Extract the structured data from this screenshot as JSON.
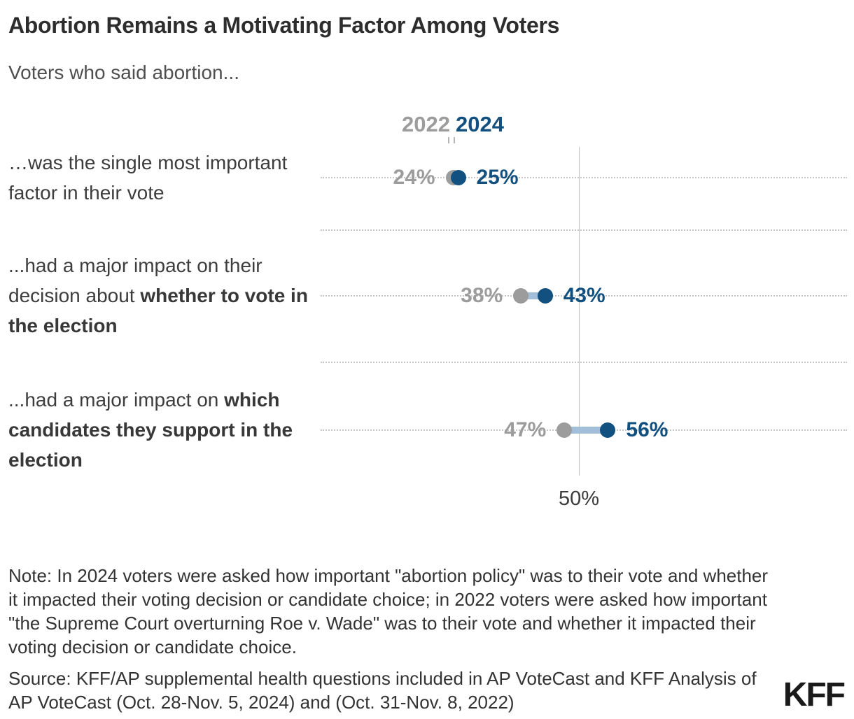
{
  "header": {
    "title": "Abortion Remains a Motivating Factor Among Voters",
    "subtitle": "Voters who said abortion..."
  },
  "legend": {
    "label_2022": "2022",
    "label_2024": "2024"
  },
  "rows": [
    {
      "label_regular": "…was the single most important factor in their vote",
      "label_bold": ""
    },
    {
      "label_regular": "...had a major impact on their decision about ",
      "label_bold": "whether to vote in the election"
    },
    {
      "label_regular": "...had a major impact on ",
      "label_bold": "which candidates they support in the election"
    }
  ],
  "chart_data": {
    "type": "dumbbell",
    "categories": [
      "…was the single most important factor in their vote",
      "...had a major impact on their decision about whether to vote in the election",
      "...had a major impact on which candidates they support in the election"
    ],
    "series": [
      {
        "name": "2022",
        "values": [
          24,
          38,
          47
        ],
        "value_labels": [
          "24%",
          "38%",
          "47%"
        ],
        "color": "#9c9c9c"
      },
      {
        "name": "2024",
        "values": [
          25,
          43,
          56
        ],
        "value_labels": [
          "25%",
          "43%",
          "56%"
        ],
        "color": "#12507f"
      }
    ],
    "title": "Abortion Remains a Motivating Factor Among Voters",
    "xlabel": "",
    "ylabel": "",
    "xlim": [
      -3.5,
      105.5
    ],
    "reference_line": {
      "value": 50,
      "label": "50%"
    },
    "grid": "dotted-horizontal",
    "legend_position": "top-center-above-first-row",
    "connector_color": "#a2bed8"
  },
  "footer": {
    "note": "Note: In 2024 voters were asked how important \"abortion policy\" was to their vote and whether it impacted their voting decision or candidate choice; in 2022 voters were asked how important \"the Supreme Court overturning Roe v. Wade\" was to their vote and whether it impacted their voting decision or candidate choice.",
    "source": "Source: KFF/AP supplemental health questions included in AP VoteCast and KFF Analysis of AP VoteCast (Oct. 28-Nov. 5, 2024) and (Oct. 31-Nov. 8, 2022)",
    "logo": "KFF"
  }
}
